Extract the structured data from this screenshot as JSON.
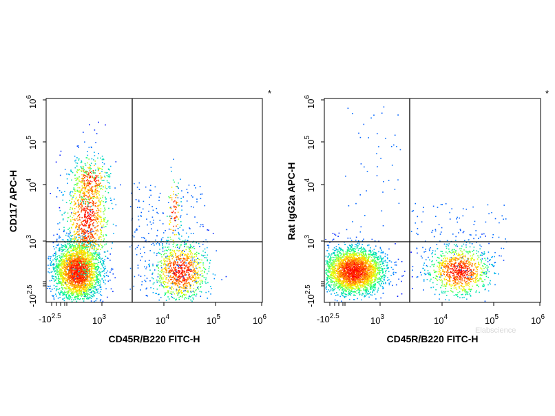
{
  "chart_data": [
    {
      "type": "scatter",
      "subtype": "flow-cytometry-pseudocolor-dot-plot",
      "xlabel": "CD45R/B220 FITC-H",
      "ylabel": "CD117 APC-H",
      "x_scale": "biexponential",
      "y_scale": "biexponential",
      "xlim": [
        -316,
        1000000
      ],
      "ylim": [
        -316,
        1000000
      ],
      "x_ticks": [
        {
          "base": "-10",
          "exp": "2.5"
        },
        {
          "base": "10",
          "exp": "3"
        },
        {
          "base": "10",
          "exp": "4"
        },
        {
          "base": "10",
          "exp": "5"
        },
        {
          "base": "10",
          "exp": "6"
        }
      ],
      "y_ticks": [
        {
          "base": "-10",
          "exp": "2.5"
        },
        {
          "base": "10",
          "exp": "3"
        },
        {
          "base": "10",
          "exp": "4"
        },
        {
          "base": "10",
          "exp": "5"
        },
        {
          "base": "10",
          "exp": "6"
        }
      ],
      "quadrant_gate": {
        "x": 2500,
        "y": 900
      },
      "marker": "*",
      "populations": [
        {
          "description": "B220- CD117- dense cluster",
          "x_center": 350,
          "y_center": 300,
          "density": "high"
        },
        {
          "description": "B220- CD117+ stream",
          "x_center": 500,
          "y_center": 5000,
          "density": "medium"
        },
        {
          "description": "B220+ CD117- cluster",
          "x_center": 30000,
          "y_center": 300,
          "density": "medium"
        }
      ],
      "color_scale": [
        "#0000ff",
        "#00aaff",
        "#00ff80",
        "#ffff00",
        "#ff8000",
        "#ff0000"
      ],
      "grid": false
    },
    {
      "type": "scatter",
      "subtype": "flow-cytometry-pseudocolor-dot-plot",
      "xlabel": "CD45R/B220 FITC-H",
      "ylabel": "Rat IgG2a APC-H",
      "x_scale": "biexponential",
      "y_scale": "biexponential",
      "xlim": [
        -316,
        1000000
      ],
      "ylim": [
        -316,
        1000000
      ],
      "x_ticks": [
        {
          "base": "-10",
          "exp": "2.5"
        },
        {
          "base": "10",
          "exp": "3"
        },
        {
          "base": "10",
          "exp": "4"
        },
        {
          "base": "10",
          "exp": "5"
        },
        {
          "base": "10",
          "exp": "6"
        }
      ],
      "y_ticks": [
        {
          "base": "-10",
          "exp": "2.5"
        },
        {
          "base": "10",
          "exp": "3"
        },
        {
          "base": "10",
          "exp": "4"
        },
        {
          "base": "10",
          "exp": "5"
        },
        {
          "base": "10",
          "exp": "6"
        }
      ],
      "quadrant_gate": {
        "x": 2500,
        "y": 900
      },
      "marker": "*",
      "populations": [
        {
          "description": "B220- IgG2a- dense cluster",
          "x_center": 300,
          "y_center": 300,
          "density": "high"
        },
        {
          "description": "B220+ IgG2a- cluster",
          "x_center": 30000,
          "y_center": 300,
          "density": "medium"
        }
      ],
      "color_scale": [
        "#0000ff",
        "#00aaff",
        "#00ff80",
        "#ffff00",
        "#ff8000",
        "#ff0000"
      ],
      "grid": false
    }
  ],
  "watermark": "Elabscience"
}
